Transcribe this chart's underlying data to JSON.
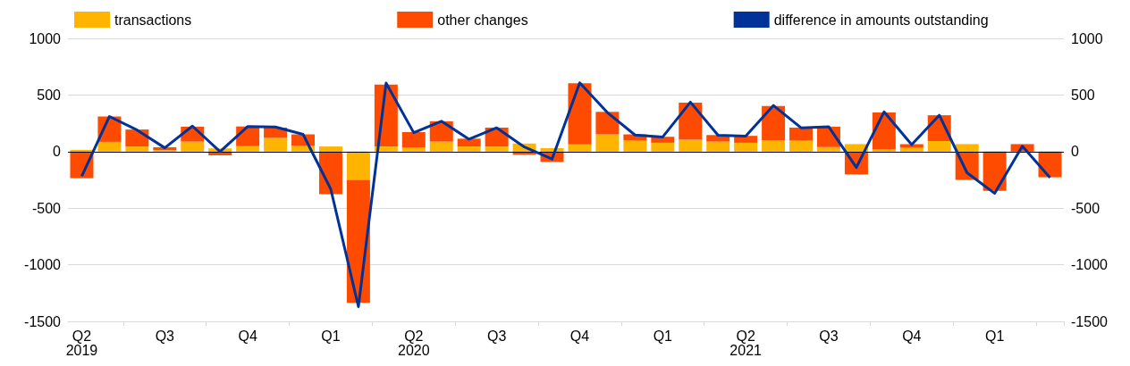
{
  "chart_data": {
    "type": "bar",
    "stacked": true,
    "categories": [
      "Q2\n2019",
      null,
      null,
      "Q3",
      null,
      null,
      "Q4",
      null,
      null,
      "Q1",
      null,
      null,
      "Q2\n2020",
      null,
      null,
      "Q3",
      null,
      null,
      "Q4",
      null,
      null,
      "Q1",
      null,
      null,
      "Q2\n2021",
      null,
      null,
      "Q3",
      null,
      null,
      "Q4",
      null,
      null,
      "Q1",
      null,
      null
    ],
    "series": [
      {
        "name": "transactions",
        "color": "#ffb400",
        "values": [
          15,
          86,
          45,
          12,
          88,
          28,
          48,
          121,
          53,
          45,
          -250,
          45,
          35,
          88,
          45,
          45,
          71,
          30,
          63,
          152,
          98,
          78,
          104,
          88,
          78,
          98,
          98,
          40,
          66,
          20,
          33,
          93,
          66,
          null,
          null,
          null
        ]
      },
      {
        "name": "other changes",
        "color": "#ff4b00",
        "values": [
          -235,
          224,
          150,
          26,
          132,
          -33,
          174,
          91,
          99,
          -376,
          -1086,
          546,
          137,
          180,
          69,
          167,
          -28,
          -91,
          540,
          199,
          54,
          53,
          328,
          58,
          61,
          304,
          114,
          180,
          -202,
          326,
          33,
          228,
          -250,
          -346,
          66,
          -227
        ]
      },
      {
        "name": "difference in amounts outstanding",
        "type": "line",
        "color": "#003299",
        "values": [
          -218,
          310,
          190,
          33,
          225,
          0,
          222,
          217,
          152,
          -331,
          -1370,
          605,
          167,
          268,
          109,
          210,
          40,
          -66,
          608,
          345,
          146,
          129,
          437,
          144,
          136,
          407,
          210,
          220,
          -141,
          351,
          61,
          321,
          -187,
          -369,
          48,
          -230
        ]
      }
    ],
    "ylim": [
      -1500,
      1000
    ],
    "yticks": [
      -1500,
      -1000,
      -500,
      0,
      500,
      1000
    ],
    "y2lim": [
      -1500,
      1000
    ],
    "y2ticks": [
      -1500,
      -1000,
      -500,
      0,
      500,
      1000
    ],
    "grid": "y",
    "legend": "top",
    "marker": "none",
    "line_style": "solid"
  }
}
